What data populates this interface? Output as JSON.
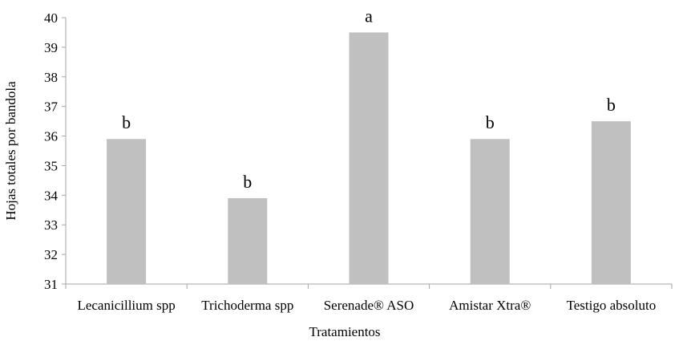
{
  "chart_data": {
    "type": "bar",
    "title": "",
    "xlabel": "Tratamientos",
    "ylabel": "Hojas totales por bandola",
    "ylim": [
      31,
      40
    ],
    "yticks": [
      31,
      32,
      33,
      34,
      35,
      36,
      37,
      38,
      39,
      40
    ],
    "categories": [
      "Lecanicillium spp",
      "Trichoderma spp",
      "Serenade® ASO",
      "Amistar Xtra®",
      "Testigo absoluto"
    ],
    "values": [
      35.9,
      33.9,
      39.5,
      35.9,
      36.5
    ],
    "significance_letters": [
      "b",
      "b",
      "a",
      "b",
      "b"
    ],
    "bar_color": "#c0c0c0",
    "grid": false,
    "legend": "none"
  }
}
